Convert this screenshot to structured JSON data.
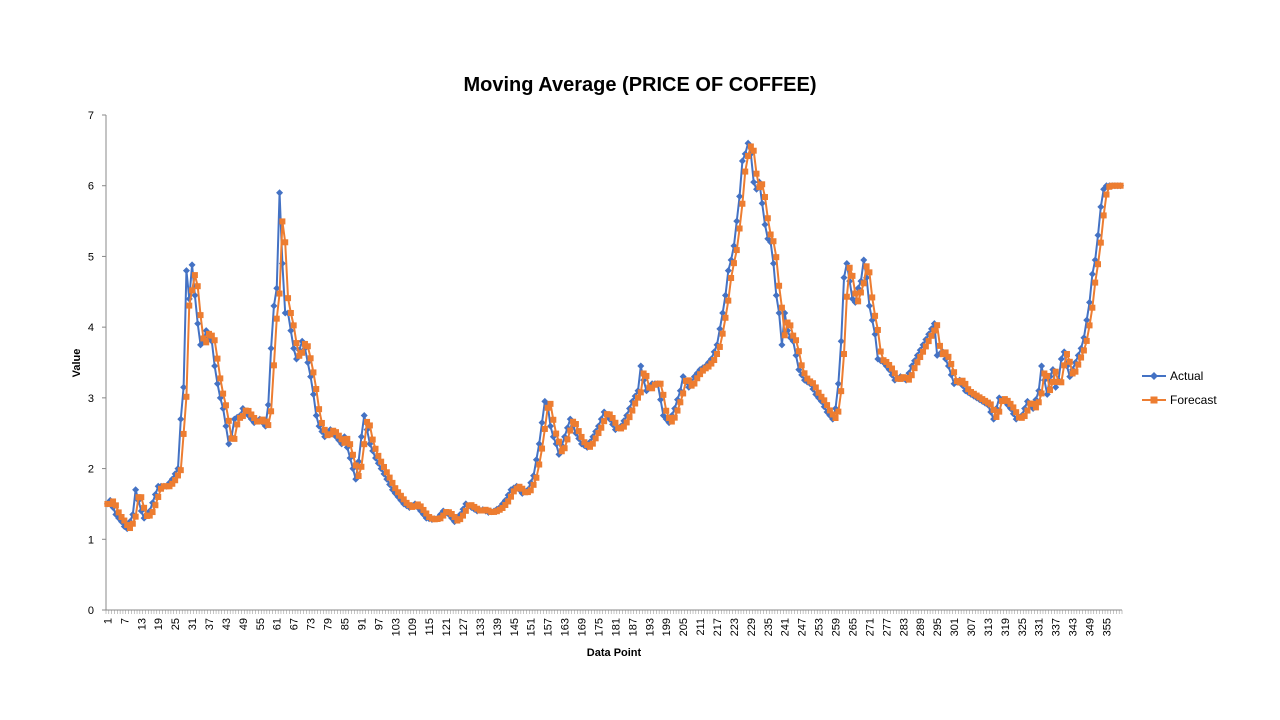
{
  "chart_data": {
    "type": "line",
    "title": "Moving Average (PRICE OF COFFEE)",
    "xlabel": "Data Point",
    "ylabel": "Value",
    "ylim": [
      0,
      7
    ],
    "y_ticks": [
      "0",
      "1",
      "2",
      "3",
      "4",
      "5",
      "6",
      "7"
    ],
    "x_tick_labels": [
      "1",
      "7",
      "13",
      "19",
      "25",
      "31",
      "37",
      "43",
      "49",
      "55",
      "61",
      "67",
      "73",
      "79",
      "85",
      "91",
      "97",
      "103",
      "109",
      "115",
      "121",
      "127",
      "133",
      "139",
      "145",
      "151",
      "157",
      "163",
      "169",
      "175",
      "181",
      "187",
      "193",
      "199",
      "205",
      "211",
      "217",
      "223",
      "229",
      "235",
      "241",
      "247",
      "253",
      "259",
      "265",
      "271",
      "277",
      "283",
      "289",
      "295",
      "301",
      "307",
      "313",
      "319",
      "325",
      "331",
      "337",
      "343",
      "349",
      "355"
    ],
    "grid": false,
    "legend_position": "right",
    "x_count": 360,
    "series": [
      {
        "name": "Actual",
        "color": "#4472C4",
        "marker": "diamond",
        "anchors": [
          [
            1,
            1.5
          ],
          [
            2,
            1.55
          ],
          [
            4,
            1.35
          ],
          [
            6,
            1.25
          ],
          [
            7,
            1.18
          ],
          [
            8,
            1.15
          ],
          [
            10,
            1.35
          ],
          [
            11,
            1.7
          ],
          [
            12,
            1.55
          ],
          [
            13,
            1.4
          ],
          [
            14,
            1.3
          ],
          [
            16,
            1.4
          ],
          [
            19,
            1.75
          ],
          [
            22,
            1.75
          ],
          [
            24,
            1.85
          ],
          [
            26,
            2.0
          ],
          [
            27,
            2.7
          ],
          [
            28,
            3.15
          ],
          [
            29,
            4.8
          ],
          [
            30,
            4.4
          ],
          [
            31,
            4.88
          ],
          [
            32,
            4.45
          ],
          [
            33,
            4.05
          ],
          [
            34,
            3.75
          ],
          [
            35,
            3.8
          ],
          [
            36,
            3.95
          ],
          [
            37,
            3.85
          ],
          [
            38,
            3.8
          ],
          [
            39,
            3.45
          ],
          [
            40,
            3.2
          ],
          [
            41,
            3.0
          ],
          [
            42,
            2.85
          ],
          [
            44,
            2.35
          ],
          [
            45,
            2.45
          ],
          [
            46,
            2.7
          ],
          [
            48,
            2.75
          ],
          [
            49,
            2.85
          ],
          [
            51,
            2.75
          ],
          [
            53,
            2.65
          ],
          [
            55,
            2.7
          ],
          [
            57,
            2.6
          ],
          [
            58,
            2.9
          ],
          [
            59,
            3.7
          ],
          [
            60,
            4.3
          ],
          [
            61,
            4.55
          ],
          [
            62,
            5.9
          ],
          [
            63,
            4.9
          ],
          [
            64,
            4.2
          ],
          [
            65,
            4.2
          ],
          [
            66,
            3.95
          ],
          [
            67,
            3.7
          ],
          [
            68,
            3.55
          ],
          [
            70,
            3.8
          ],
          [
            71,
            3.7
          ],
          [
            72,
            3.5
          ],
          [
            73,
            3.3
          ],
          [
            74,
            3.05
          ],
          [
            75,
            2.75
          ],
          [
            76,
            2.6
          ],
          [
            78,
            2.45
          ],
          [
            80,
            2.55
          ],
          [
            82,
            2.45
          ],
          [
            84,
            2.35
          ],
          [
            85,
            2.45
          ],
          [
            87,
            2.15
          ],
          [
            88,
            2.0
          ],
          [
            89,
            1.85
          ],
          [
            90,
            2.1
          ],
          [
            91,
            2.45
          ],
          [
            92,
            2.75
          ],
          [
            93,
            2.55
          ],
          [
            94,
            2.35
          ],
          [
            96,
            2.15
          ],
          [
            98,
            2.0
          ],
          [
            100,
            1.85
          ],
          [
            102,
            1.7
          ],
          [
            104,
            1.6
          ],
          [
            106,
            1.5
          ],
          [
            108,
            1.45
          ],
          [
            110,
            1.5
          ],
          [
            112,
            1.4
          ],
          [
            114,
            1.3
          ],
          [
            116,
            1.28
          ],
          [
            118,
            1.3
          ],
          [
            120,
            1.4
          ],
          [
            122,
            1.35
          ],
          [
            124,
            1.25
          ],
          [
            126,
            1.35
          ],
          [
            128,
            1.5
          ],
          [
            130,
            1.45
          ],
          [
            132,
            1.4
          ],
          [
            134,
            1.42
          ],
          [
            136,
            1.38
          ],
          [
            138,
            1.4
          ],
          [
            140,
            1.45
          ],
          [
            142,
            1.55
          ],
          [
            144,
            1.7
          ],
          [
            146,
            1.75
          ],
          [
            148,
            1.65
          ],
          [
            150,
            1.7
          ],
          [
            152,
            1.9
          ],
          [
            154,
            2.35
          ],
          [
            155,
            2.65
          ],
          [
            156,
            2.95
          ],
          [
            157,
            2.9
          ],
          [
            158,
            2.6
          ],
          [
            159,
            2.45
          ],
          [
            160,
            2.35
          ],
          [
            161,
            2.2
          ],
          [
            163,
            2.45
          ],
          [
            165,
            2.7
          ],
          [
            167,
            2.5
          ],
          [
            169,
            2.35
          ],
          [
            171,
            2.3
          ],
          [
            173,
            2.45
          ],
          [
            175,
            2.6
          ],
          [
            177,
            2.8
          ],
          [
            179,
            2.7
          ],
          [
            181,
            2.55
          ],
          [
            183,
            2.6
          ],
          [
            185,
            2.75
          ],
          [
            187,
            2.95
          ],
          [
            189,
            3.1
          ],
          [
            190,
            3.45
          ],
          [
            191,
            3.25
          ],
          [
            192,
            3.1
          ],
          [
            194,
            3.2
          ],
          [
            196,
            3.2
          ],
          [
            198,
            2.75
          ],
          [
            200,
            2.65
          ],
          [
            202,
            2.85
          ],
          [
            204,
            3.1
          ],
          [
            205,
            3.3
          ],
          [
            207,
            3.15
          ],
          [
            209,
            3.3
          ],
          [
            211,
            3.4
          ],
          [
            213,
            3.45
          ],
          [
            215,
            3.55
          ],
          [
            217,
            3.75
          ],
          [
            219,
            4.2
          ],
          [
            220,
            4.45
          ],
          [
            221,
            4.8
          ],
          [
            222,
            4.95
          ],
          [
            223,
            5.15
          ],
          [
            224,
            5.5
          ],
          [
            225,
            5.85
          ],
          [
            226,
            6.35
          ],
          [
            227,
            6.45
          ],
          [
            228,
            6.6
          ],
          [
            229,
            6.45
          ],
          [
            230,
            6.05
          ],
          [
            231,
            5.95
          ],
          [
            232,
            6.05
          ],
          [
            233,
            5.75
          ],
          [
            234,
            5.45
          ],
          [
            235,
            5.25
          ],
          [
            236,
            5.2
          ],
          [
            237,
            4.9
          ],
          [
            238,
            4.45
          ],
          [
            239,
            4.2
          ],
          [
            240,
            3.75
          ],
          [
            241,
            4.2
          ],
          [
            242,
            3.95
          ],
          [
            243,
            3.85
          ],
          [
            244,
            3.8
          ],
          [
            245,
            3.6
          ],
          [
            246,
            3.4
          ],
          [
            248,
            3.25
          ],
          [
            250,
            3.2
          ],
          [
            252,
            3.05
          ],
          [
            254,
            2.95
          ],
          [
            256,
            2.8
          ],
          [
            258,
            2.7
          ],
          [
            259,
            2.85
          ],
          [
            260,
            3.2
          ],
          [
            261,
            3.8
          ],
          [
            262,
            4.7
          ],
          [
            263,
            4.9
          ],
          [
            264,
            4.65
          ],
          [
            265,
            4.4
          ],
          [
            266,
            4.35
          ],
          [
            267,
            4.55
          ],
          [
            268,
            4.65
          ],
          [
            269,
            4.95
          ],
          [
            270,
            4.7
          ],
          [
            271,
            4.3
          ],
          [
            272,
            4.1
          ],
          [
            273,
            3.9
          ],
          [
            274,
            3.55
          ],
          [
            276,
            3.5
          ],
          [
            278,
            3.4
          ],
          [
            280,
            3.25
          ],
          [
            282,
            3.3
          ],
          [
            284,
            3.25
          ],
          [
            286,
            3.45
          ],
          [
            288,
            3.6
          ],
          [
            290,
            3.75
          ],
          [
            292,
            3.9
          ],
          [
            294,
            4.05
          ],
          [
            295,
            3.6
          ],
          [
            297,
            3.65
          ],
          [
            299,
            3.45
          ],
          [
            301,
            3.2
          ],
          [
            303,
            3.25
          ],
          [
            305,
            3.1
          ],
          [
            307,
            3.05
          ],
          [
            309,
            3.0
          ],
          [
            311,
            2.95
          ],
          [
            313,
            2.9
          ],
          [
            315,
            2.7
          ],
          [
            317,
            3.0
          ],
          [
            319,
            2.95
          ],
          [
            321,
            2.85
          ],
          [
            323,
            2.7
          ],
          [
            325,
            2.75
          ],
          [
            327,
            2.95
          ],
          [
            329,
            2.85
          ],
          [
            331,
            3.1
          ],
          [
            332,
            3.45
          ],
          [
            333,
            3.25
          ],
          [
            334,
            3.05
          ],
          [
            335,
            3.3
          ],
          [
            336,
            3.4
          ],
          [
            337,
            3.15
          ],
          [
            338,
            3.25
          ],
          [
            339,
            3.55
          ],
          [
            340,
            3.65
          ],
          [
            341,
            3.45
          ],
          [
            342,
            3.3
          ],
          [
            343,
            3.4
          ],
          [
            344,
            3.5
          ],
          [
            345,
            3.6
          ],
          [
            346,
            3.7
          ],
          [
            347,
            3.85
          ],
          [
            348,
            4.1
          ],
          [
            349,
            4.35
          ],
          [
            350,
            4.75
          ],
          [
            351,
            4.95
          ],
          [
            352,
            5.3
          ],
          [
            353,
            5.7
          ],
          [
            354,
            5.95
          ],
          [
            355,
            6.0
          ]
        ]
      },
      {
        "name": "Forecast",
        "color": "#ED7D31",
        "marker": "square",
        "lag": 1
      }
    ]
  }
}
